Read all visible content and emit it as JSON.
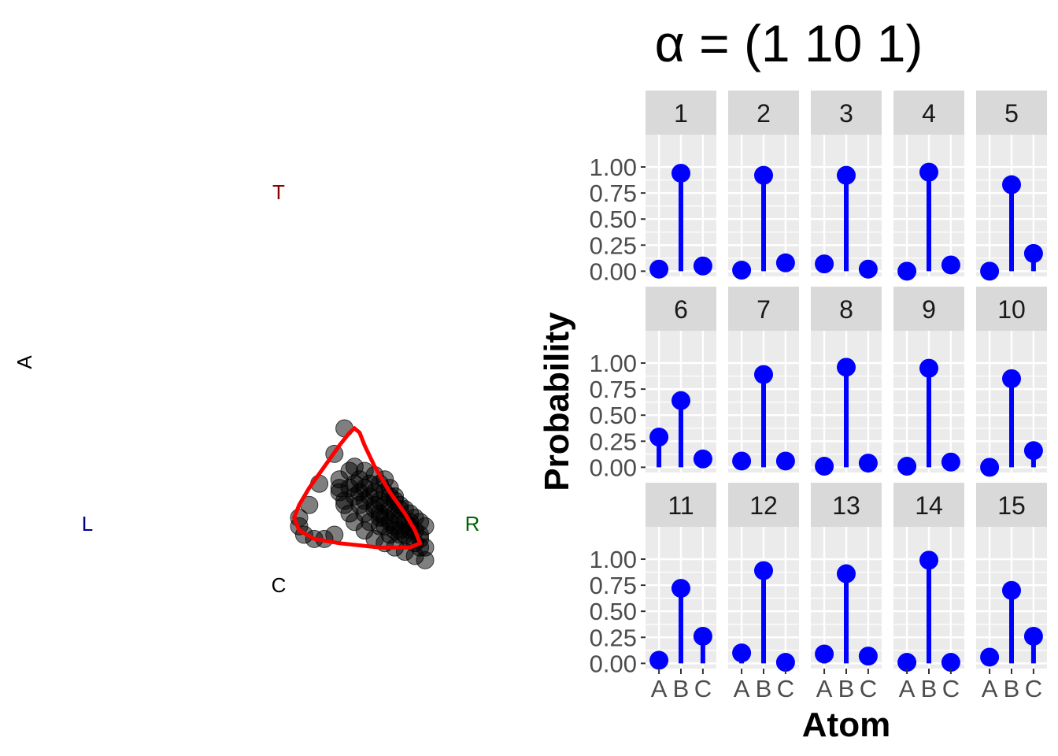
{
  "chart_data": [
    {
      "type": "scatter",
      "panel": "simplex",
      "vertex_labels": {
        "top": "T",
        "left": "L",
        "right": "R",
        "bottom": "C",
        "side": "A"
      },
      "vertex_label_colors": {
        "top": "#8b0000",
        "left": "#00008b",
        "right": "#006400",
        "bottom": "#000000",
        "side": "#000000"
      },
      "point_color": "#000000",
      "contour_color": "#ff0000",
      "points": [
        [
          0.6,
          0.3
        ],
        [
          0.58,
          0.28
        ],
        [
          0.58,
          0.26
        ],
        [
          0.58,
          0.25
        ],
        [
          0.59,
          0.23
        ],
        [
          0.59,
          0.22
        ],
        [
          0.6,
          0.2
        ],
        [
          0.61,
          0.18
        ],
        [
          0.63,
          0.16
        ],
        [
          0.65,
          0.14
        ],
        [
          0.67,
          0.13
        ],
        [
          0.69,
          0.12
        ],
        [
          0.71,
          0.11
        ],
        [
          0.73,
          0.1
        ],
        [
          0.75,
          0.09
        ],
        [
          0.75,
          0.12
        ],
        [
          0.74,
          0.15
        ],
        [
          0.72,
          0.18
        ],
        [
          0.7,
          0.21
        ],
        [
          0.69,
          0.24
        ],
        [
          0.68,
          0.26
        ],
        [
          0.67,
          0.28
        ],
        [
          0.65,
          0.29
        ],
        [
          0.63,
          0.3
        ],
        [
          0.61,
          0.31
        ],
        [
          0.59,
          0.4
        ],
        [
          0.57,
          0.34
        ],
        [
          0.54,
          0.27
        ],
        [
          0.52,
          0.22
        ],
        [
          0.5,
          0.19
        ],
        [
          0.5,
          0.17
        ],
        [
          0.51,
          0.15
        ],
        [
          0.53,
          0.14
        ],
        [
          0.55,
          0.14
        ],
        [
          0.57,
          0.15
        ],
        [
          0.61,
          0.24
        ],
        [
          0.62,
          0.22
        ],
        [
          0.63,
          0.2
        ],
        [
          0.64,
          0.18
        ],
        [
          0.66,
          0.17
        ],
        [
          0.68,
          0.15
        ],
        [
          0.7,
          0.15
        ],
        [
          0.72,
          0.14
        ],
        [
          0.73,
          0.13
        ],
        [
          0.74,
          0.12
        ],
        [
          0.63,
          0.26
        ],
        [
          0.64,
          0.24
        ],
        [
          0.65,
          0.22
        ],
        [
          0.66,
          0.2
        ],
        [
          0.67,
          0.19
        ],
        [
          0.68,
          0.18
        ],
        [
          0.69,
          0.17
        ],
        [
          0.7,
          0.16
        ],
        [
          0.71,
          0.15
        ],
        [
          0.72,
          0.16
        ],
        [
          0.65,
          0.25
        ],
        [
          0.66,
          0.23
        ],
        [
          0.67,
          0.22
        ],
        [
          0.68,
          0.21
        ],
        [
          0.69,
          0.2
        ],
        [
          0.7,
          0.19
        ],
        [
          0.71,
          0.18
        ],
        [
          0.72,
          0.17
        ],
        [
          0.73,
          0.16
        ],
        [
          0.74,
          0.14
        ],
        [
          0.66,
          0.27
        ],
        [
          0.67,
          0.25
        ],
        [
          0.68,
          0.24
        ],
        [
          0.69,
          0.23
        ],
        [
          0.7,
          0.22
        ],
        [
          0.71,
          0.21
        ],
        [
          0.72,
          0.2
        ],
        [
          0.73,
          0.19
        ],
        [
          0.74,
          0.18
        ],
        [
          0.75,
          0.17
        ],
        [
          0.62,
          0.28
        ],
        [
          0.6,
          0.26
        ],
        [
          0.61,
          0.27
        ],
        [
          0.62,
          0.25
        ],
        [
          0.64,
          0.27
        ],
        [
          0.63,
          0.23
        ],
        [
          0.65,
          0.21
        ],
        [
          0.66,
          0.19
        ],
        [
          0.67,
          0.17
        ],
        [
          0.69,
          0.16
        ]
      ],
      "contour": [
        [
          0.61,
          0.4
        ],
        [
          0.6,
          0.39
        ],
        [
          0.58,
          0.36
        ],
        [
          0.55,
          0.31
        ],
        [
          0.52,
          0.26
        ],
        [
          0.5,
          0.22
        ],
        [
          0.49,
          0.19
        ],
        [
          0.5,
          0.16
        ],
        [
          0.53,
          0.14
        ],
        [
          0.58,
          0.13
        ],
        [
          0.66,
          0.12
        ],
        [
          0.72,
          0.12
        ],
        [
          0.74,
          0.13
        ],
        [
          0.73,
          0.16
        ],
        [
          0.71,
          0.2
        ],
        [
          0.68,
          0.25
        ],
        [
          0.65,
          0.31
        ],
        [
          0.63,
          0.36
        ],
        [
          0.62,
          0.39
        ],
        [
          0.61,
          0.4
        ]
      ]
    },
    {
      "type": "lollipop",
      "panel": "facets",
      "title": "α = (1 10 1)",
      "xlabel": "Atom",
      "ylabel": "Probability",
      "categories": [
        "A",
        "B",
        "C"
      ],
      "ylim": [
        0,
        1
      ],
      "yticks": [
        "0.00",
        "0.25",
        "0.50",
        "0.75",
        "1.00"
      ],
      "color": "#0000ff",
      "facets": [
        {
          "label": "1",
          "values": [
            0.02,
            0.94,
            0.05
          ]
        },
        {
          "label": "2",
          "values": [
            0.01,
            0.92,
            0.08
          ]
        },
        {
          "label": "3",
          "values": [
            0.07,
            0.92,
            0.02
          ]
        },
        {
          "label": "4",
          "values": [
            0.0,
            0.95,
            0.06
          ]
        },
        {
          "label": "5",
          "values": [
            0.0,
            0.83,
            0.17
          ]
        },
        {
          "label": "6",
          "values": [
            0.29,
            0.64,
            0.08
          ]
        },
        {
          "label": "7",
          "values": [
            0.06,
            0.89,
            0.06
          ]
        },
        {
          "label": "8",
          "values": [
            0.01,
            0.96,
            0.04
          ]
        },
        {
          "label": "9",
          "values": [
            0.01,
            0.95,
            0.05
          ]
        },
        {
          "label": "10",
          "values": [
            0.0,
            0.85,
            0.16
          ]
        },
        {
          "label": "11",
          "values": [
            0.03,
            0.72,
            0.26
          ]
        },
        {
          "label": "12",
          "values": [
            0.1,
            0.89,
            0.01
          ]
        },
        {
          "label": "13",
          "values": [
            0.09,
            0.86,
            0.07
          ]
        },
        {
          "label": "14",
          "values": [
            0.01,
            0.99,
            0.01
          ]
        },
        {
          "label": "15",
          "values": [
            0.06,
            0.7,
            0.26
          ]
        }
      ]
    }
  ]
}
